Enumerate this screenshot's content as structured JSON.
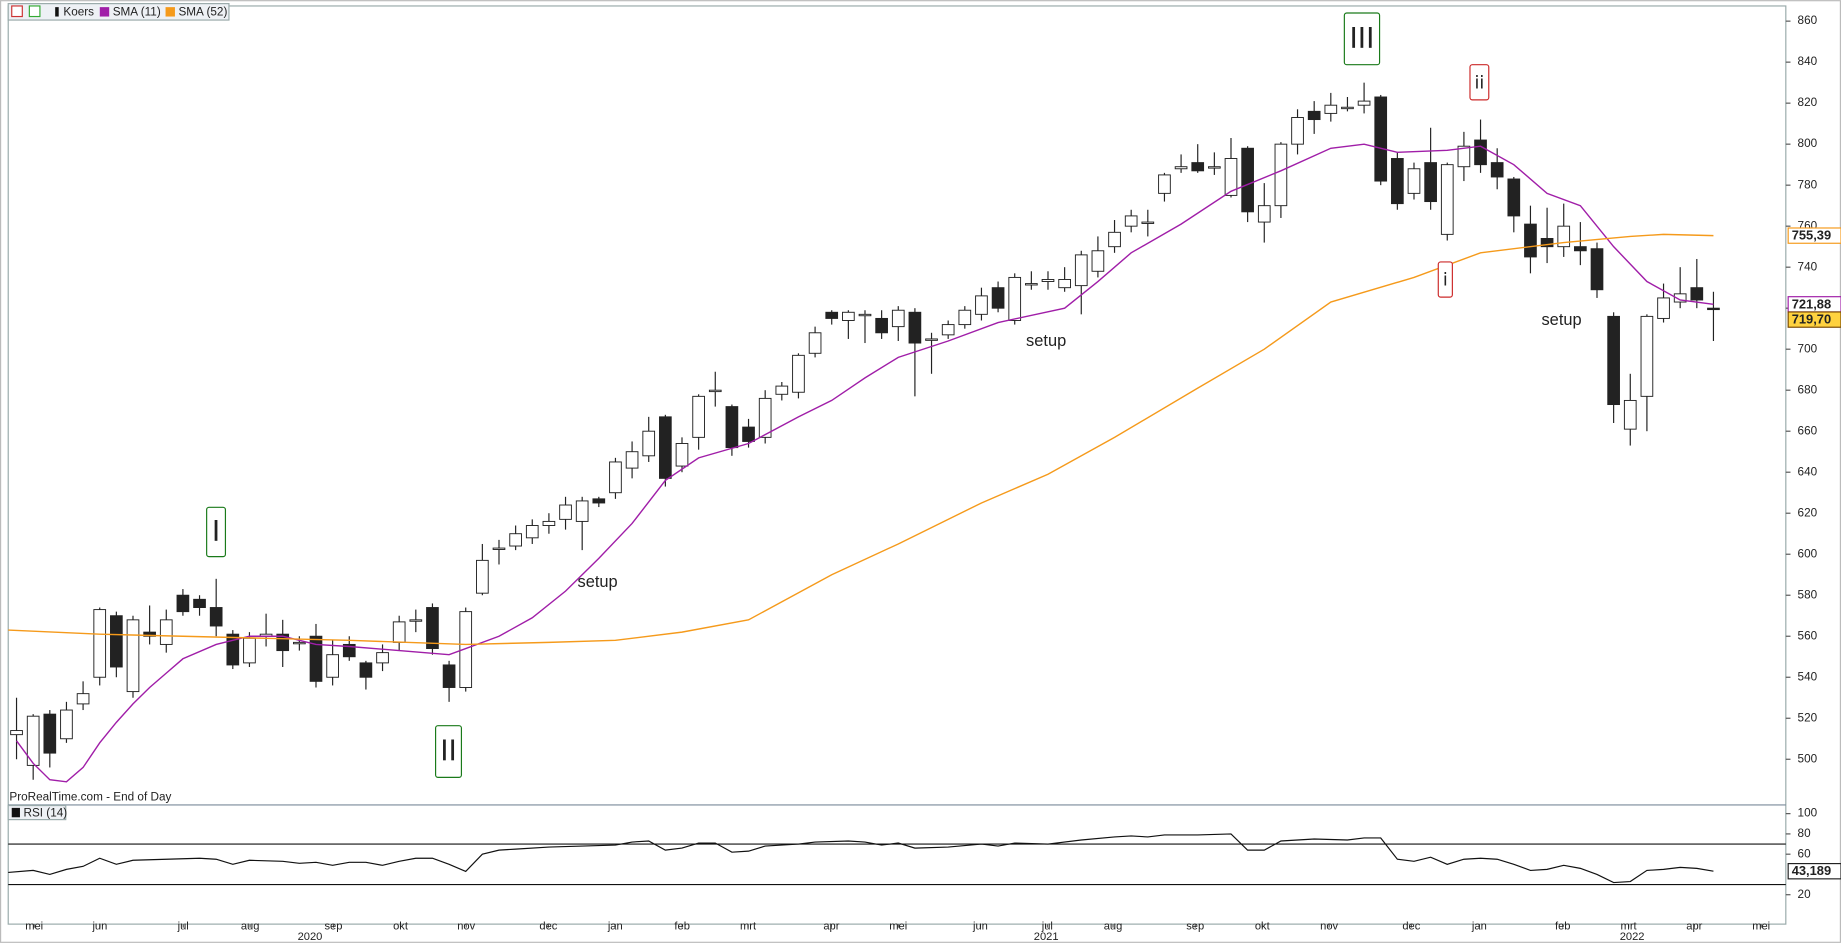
{
  "chart_data": [
    {
      "type": "candlestick",
      "xlim": [
        -0.5,
        106.35
      ],
      "ylim": [
        478,
        867.4
      ],
      "yticks": [
        500,
        520,
        540,
        560,
        580,
        600,
        620,
        640,
        660,
        680,
        700,
        720,
        740,
        760,
        780,
        800,
        820,
        840,
        860
      ],
      "xticks": [
        {
          "value": 1.06,
          "label": "mei"
        },
        {
          "value": 5.01,
          "label": "jun"
        },
        {
          "value": 10.02,
          "label": "jul"
        },
        {
          "value": 14.04,
          "label": "aug"
        },
        {
          "value": 19.05,
          "label": "sep"
        },
        {
          "value": 23.08,
          "label": "okt"
        },
        {
          "value": 27.03,
          "label": "nov"
        },
        {
          "value": 31.97,
          "label": "dec"
        },
        {
          "value": 35.99,
          "label": "jan"
        },
        {
          "value": 40.01,
          "label": "feb"
        },
        {
          "value": 43.97,
          "label": "mrt"
        },
        {
          "value": 48.98,
          "label": "apr"
        },
        {
          "value": 53.0,
          "label": "mei"
        },
        {
          "value": 57.94,
          "label": "jun"
        },
        {
          "value": 61.96,
          "label": "jul"
        },
        {
          "value": 65.91,
          "label": "aug"
        },
        {
          "value": 70.85,
          "label": "sep"
        },
        {
          "value": 74.88,
          "label": "okt"
        },
        {
          "value": 78.9,
          "label": "nov"
        },
        {
          "value": 83.84,
          "label": "dec"
        },
        {
          "value": 87.93,
          "label": "jan"
        },
        {
          "value": 92.94,
          "label": "feb"
        },
        {
          "value": 96.9,
          "label": "mrt"
        },
        {
          "value": 100.85,
          "label": "apr"
        },
        {
          "value": 104.87,
          "label": "mei"
        }
      ],
      "year_ticks": [
        {
          "value": 17.64,
          "label": "2020"
        },
        {
          "value": 61.89,
          "label": "2021"
        },
        {
          "value": 97.11,
          "label": "2022"
        }
      ],
      "series": [
        {
          "name": "Koers",
          "up_color": "#ffffff",
          "down_color": "#222222",
          "open": [
            512,
            497,
            522,
            510,
            527,
            540,
            570,
            533,
            562,
            556,
            580,
            578,
            574,
            561,
            547,
            560,
            561,
            557,
            560,
            540,
            556,
            547,
            547,
            557,
            568,
            574,
            546,
            535,
            581,
            603,
            604,
            608,
            614,
            617,
            616,
            627,
            630,
            642,
            648,
            667,
            643,
            657,
            680,
            672,
            662,
            657,
            678,
            679,
            698,
            718,
            714,
            717,
            715,
            711,
            718,
            705,
            707,
            712,
            717,
            730,
            714,
            732,
            733,
            730,
            731,
            738,
            750,
            760,
            762,
            776,
            788,
            791,
            789,
            775,
            798,
            762,
            770,
            800,
            816,
            815,
            818,
            819,
            823,
            793,
            776,
            791,
            756,
            789,
            802,
            791,
            783,
            761,
            754,
            750,
            750,
            749,
            716,
            661,
            677,
            715,
            723,
            730,
            720
          ],
          "high": [
            530,
            522,
            524,
            528,
            538,
            574,
            572,
            570,
            575,
            573,
            583,
            580,
            588,
            563,
            562,
            571,
            568,
            560,
            566,
            558,
            560,
            548,
            556,
            570,
            573,
            576,
            548,
            574,
            605,
            607,
            614,
            617,
            620,
            628,
            628,
            628,
            647,
            655,
            667,
            668,
            657,
            678,
            689,
            673,
            666,
            680,
            684,
            698,
            711,
            719,
            719,
            719,
            719,
            721,
            720,
            708,
            714,
            721,
            730,
            733,
            737,
            738,
            738,
            740,
            748,
            755,
            763,
            768,
            768,
            786,
            795,
            800,
            796,
            803,
            799,
            781,
            801,
            817,
            821,
            825,
            823,
            830,
            824,
            796,
            791,
            808,
            791,
            806,
            812,
            798,
            784,
            770,
            769,
            771,
            762,
            752,
            718,
            688,
            717,
            732,
            740,
            744,
            728
          ],
          "low": [
            500,
            490,
            496,
            508,
            524,
            536,
            540,
            530,
            556,
            552,
            570,
            570,
            560,
            544,
            545,
            555,
            545,
            553,
            535,
            536,
            548,
            534,
            543,
            553,
            562,
            551,
            528,
            533,
            580,
            595,
            602,
            605,
            610,
            612,
            602,
            623,
            627,
            637,
            645,
            633,
            640,
            651,
            672,
            648,
            652,
            654,
            675,
            676,
            696,
            712,
            705,
            703,
            705,
            704,
            677,
            688,
            705,
            710,
            714,
            718,
            712,
            729,
            729,
            728,
            717,
            735,
            747,
            757,
            755,
            772,
            786,
            786,
            785,
            774,
            762,
            752,
            764,
            795,
            805,
            811,
            816,
            815,
            780,
            768,
            773,
            768,
            753,
            782,
            786,
            778,
            757,
            737,
            742,
            745,
            741,
            725,
            664,
            653,
            660,
            713,
            720,
            720,
            704
          ],
          "close": [
            514,
            521,
            503,
            524,
            532,
            573,
            545,
            568,
            560,
            568,
            572,
            574,
            565,
            546,
            559,
            561,
            553,
            557,
            538,
            551,
            550,
            540,
            552,
            567,
            568,
            554,
            535,
            572,
            597,
            603,
            610,
            614,
            616,
            624,
            626,
            625,
            645,
            650,
            660,
            637,
            654,
            677,
            680,
            652,
            655,
            676,
            682,
            697,
            708,
            715,
            718,
            717,
            708,
            719,
            703,
            705,
            712,
            719,
            726,
            720,
            735,
            732,
            734,
            734,
            746,
            748,
            757,
            765,
            762,
            785,
            789,
            787,
            789,
            793,
            767,
            770,
            800,
            813,
            812,
            819,
            818,
            821,
            782,
            771,
            788,
            772,
            790,
            799,
            790,
            784,
            765,
            745,
            750,
            760,
            748,
            729,
            673,
            675,
            716,
            725,
            727,
            724,
            719.7
          ]
        }
      ],
      "lines": [
        {
          "name": "SMA (11)",
          "color": "#a01ea8",
          "x": [
            0,
            1,
            2,
            3,
            4,
            5,
            6,
            7,
            8,
            9,
            10,
            12,
            14,
            16,
            18,
            20,
            23,
            26,
            27,
            29,
            31,
            33,
            35,
            37,
            39,
            41,
            44,
            47,
            49,
            51,
            53,
            56,
            59,
            63,
            65,
            67,
            70,
            73,
            76,
            79,
            81,
            83,
            86,
            88,
            90,
            92,
            94,
            96,
            98,
            100,
            102
          ],
          "values": [
            509,
            498,
            490,
            489,
            496,
            508,
            518,
            527,
            535,
            542,
            549,
            556,
            560,
            560,
            556,
            555,
            553,
            551,
            554,
            560,
            569,
            582,
            598,
            615,
            636,
            647,
            654,
            667,
            675,
            686,
            696,
            704,
            713,
            720,
            733,
            747,
            761,
            777,
            787,
            798,
            800,
            796,
            797,
            799,
            790,
            776,
            770,
            750,
            733,
            724,
            721.88
          ]
        },
        {
          "name": "SMA (52)",
          "color": "#f59a1b",
          "x": [
            -0.5,
            5,
            10,
            15,
            20,
            27,
            32,
            36,
            40,
            44,
            49,
            53,
            58,
            62,
            66,
            71,
            75,
            79,
            84,
            88,
            93,
            97,
            99,
            102
          ],
          "values": [
            563,
            561,
            560,
            559,
            558,
            556,
            557,
            558,
            562,
            568,
            590,
            605,
            625,
            639,
            657,
            681,
            700,
            723,
            735,
            747,
            752,
            755,
            756,
            755.39
          ]
        }
      ],
      "price_tags": [
        {
          "value": 755.39,
          "label": "755,39",
          "color": "#f59a1b",
          "background": "#ffffff"
        },
        {
          "value": 721.88,
          "label": "721,88",
          "color": "#a01ea8",
          "background": "#ffffff"
        },
        {
          "value": 719.7,
          "label": "719,70",
          "color": "#7a4b00",
          "background": "#ffd23f"
        }
      ],
      "annotations": [
        {
          "text": "I",
          "color": "#1a7a1a",
          "boxed": true
        },
        {
          "text": "II",
          "color": "#1a7a1a",
          "boxed": true
        },
        {
          "text": "III",
          "color": "#1a7a1a",
          "boxed": true
        },
        {
          "text": "i",
          "color": "#cc2a2a",
          "boxed": true
        },
        {
          "text": "ii",
          "color": "#cc2a2a",
          "boxed": true
        },
        {
          "text": "setup",
          "color": "#8a5a2b",
          "boxed": false
        },
        {
          "text": "setup",
          "color": "#8a5a2b",
          "boxed": false
        },
        {
          "text": "setup",
          "color": "#2f8a2f",
          "boxed": false
        }
      ],
      "footer": "ProRealTime.com - End of Day"
    },
    {
      "type": "line",
      "xlim": [
        -0.5,
        106.35
      ],
      "ylim": [
        -9,
        108
      ],
      "yticks": [
        20,
        60,
        80,
        100
      ],
      "ref_lines": [
        30,
        70
      ],
      "series": [
        {
          "name": "RSI (14)",
          "color": "#111111",
          "x": [
            -0.5,
            1,
            2,
            3,
            4,
            5,
            6,
            7,
            9,
            11,
            12,
            13,
            14,
            16,
            17,
            18,
            19,
            20,
            21,
            22,
            23,
            24,
            25,
            26,
            27,
            28,
            29,
            30,
            32,
            34,
            36,
            37,
            38,
            39,
            40,
            41,
            42,
            43,
            44,
            45,
            47,
            48,
            50,
            51,
            52,
            53,
            54,
            56,
            58,
            59,
            60,
            62,
            64,
            66,
            67,
            68,
            69,
            71,
            73,
            74,
            75,
            76,
            78,
            80,
            81,
            82,
            83,
            84,
            85,
            86,
            87,
            88,
            89,
            90,
            91,
            92,
            93,
            94,
            95,
            96,
            97,
            98,
            99,
            100,
            101,
            102
          ],
          "values": [
            42,
            44,
            40,
            45,
            48,
            56,
            50,
            54,
            55,
            56,
            55,
            50,
            54,
            53,
            51,
            52,
            49,
            52,
            52,
            49,
            53,
            56,
            56,
            50,
            43,
            60,
            64,
            65,
            67,
            68,
            69,
            72,
            73,
            64,
            66,
            71,
            71,
            62,
            63,
            68,
            70,
            72,
            73,
            72,
            69,
            71,
            66,
            67,
            70,
            68,
            71,
            70,
            74,
            77,
            78,
            77,
            79,
            79,
            80,
            64,
            64,
            73,
            75,
            74,
            76,
            76,
            55,
            53,
            57,
            50,
            55,
            56,
            55,
            50,
            44,
            45,
            49,
            46,
            40,
            32,
            33,
            44,
            45,
            47,
            46,
            43.189
          ]
        }
      ],
      "price_tags": [
        {
          "value": 43.189,
          "label": "43,189",
          "color": "#222222",
          "background": "#ffffff"
        }
      ]
    }
  ]
}
